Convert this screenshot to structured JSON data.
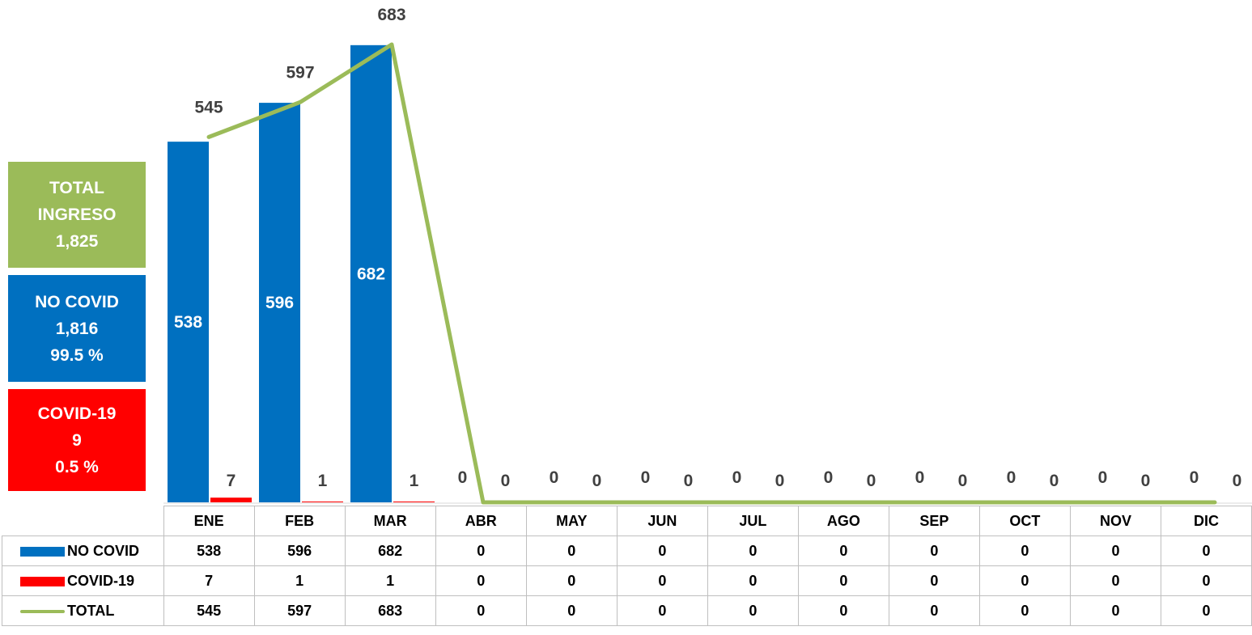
{
  "summary": {
    "total": {
      "label": "TOTAL",
      "label2": "INGRESO",
      "value": "1,825"
    },
    "no_covid": {
      "label": "NO COVID",
      "value": "1,816",
      "pct": "99.5 %"
    },
    "covid": {
      "label": "COVID-19",
      "value": "9",
      "pct": "0.5 %"
    }
  },
  "colors": {
    "no_covid": "#0070C0",
    "covid": "#FF0000",
    "total": "#9BBB59"
  },
  "chart_data": {
    "type": "bar",
    "categories": [
      "ENE",
      "FEB",
      "MAR",
      "ABR",
      "MAY",
      "JUN",
      "JUL",
      "AGO",
      "SEP",
      "OCT",
      "NOV",
      "DIC"
    ],
    "series": [
      {
        "name": "NO COVID",
        "type": "bar",
        "values": [
          538,
          596,
          682,
          0,
          0,
          0,
          0,
          0,
          0,
          0,
          0,
          0
        ]
      },
      {
        "name": "COVID-19",
        "type": "bar",
        "values": [
          7,
          1,
          1,
          0,
          0,
          0,
          0,
          0,
          0,
          0,
          0,
          0
        ]
      },
      {
        "name": "TOTAL",
        "type": "line",
        "values": [
          545,
          597,
          683,
          0,
          0,
          0,
          0,
          0,
          0,
          0,
          0,
          0
        ]
      }
    ],
    "ylim": [
      0,
      683
    ],
    "grid": false,
    "legend": "data table below chart"
  }
}
